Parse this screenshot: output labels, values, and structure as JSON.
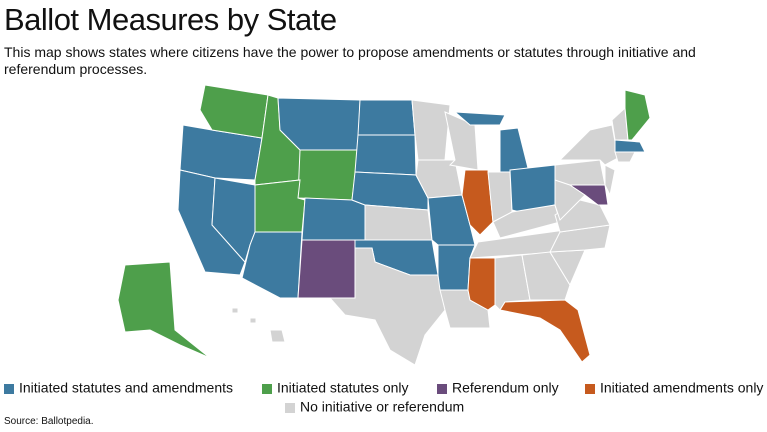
{
  "header": {
    "title": "Ballot Measures by State",
    "subtitle": "This map shows states where citizens have the power to propose amendments or statutes through initiative and referendum processes."
  },
  "legend": {
    "items": [
      {
        "label": "Initiated statutes and amendments",
        "color": "#3d7aa0"
      },
      {
        "label": "Initiated statutes only",
        "color": "#4e9f4b"
      },
      {
        "label": "Referendum only",
        "color": "#6a4c7c"
      },
      {
        "label": "Initiated amendments only",
        "color": "#c65a1e"
      },
      {
        "label": "No initiative or referendum",
        "color": "#d3d3d3"
      }
    ]
  },
  "source": "Source: Ballotpedia."
}
